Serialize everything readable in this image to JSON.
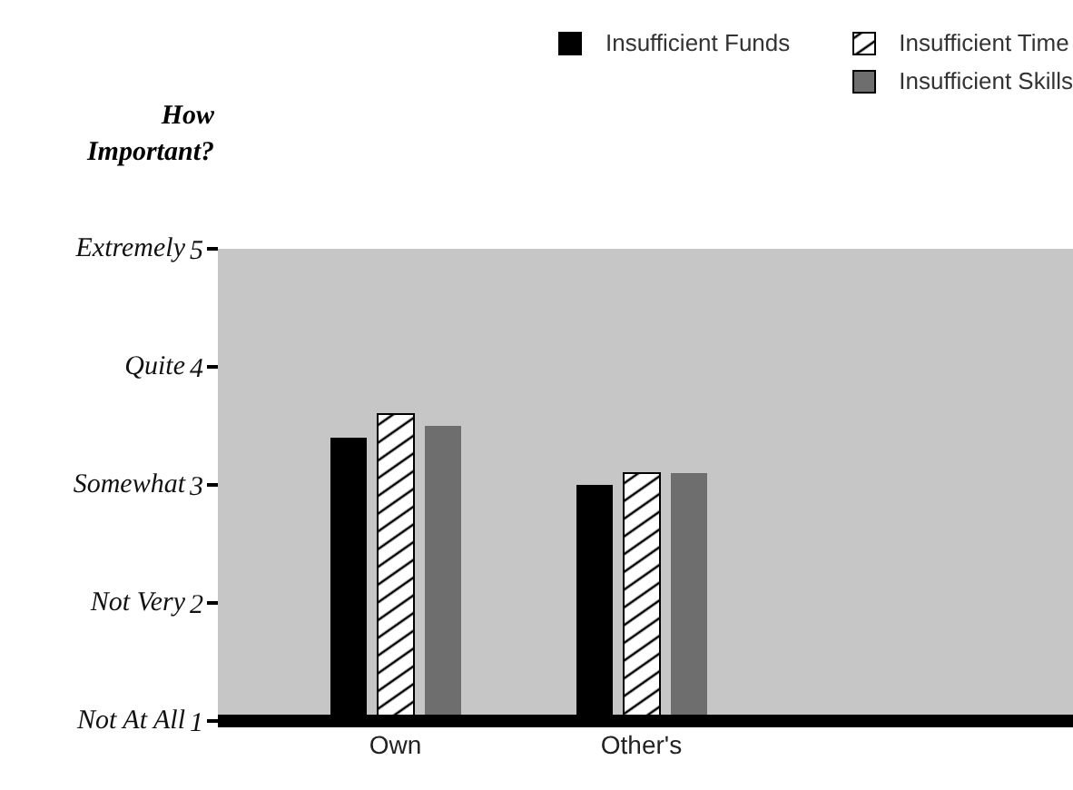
{
  "chart_data": {
    "type": "bar",
    "ylabel": "How Important?",
    "categories": [
      "Own",
      "Other's"
    ],
    "series": [
      {
        "name": "Insufficient Funds",
        "color": "#000000",
        "values": [
          3.4,
          3.0
        ]
      },
      {
        "name": "Insufficient Time",
        "color": "#ffffff",
        "values": [
          3.6,
          3.1
        ]
      },
      {
        "name": "Insufficient Skills",
        "color": "#6e6e6e",
        "values": [
          3.5,
          3.1
        ]
      }
    ],
    "ylim": [
      1,
      5
    ],
    "yticks": [
      1,
      2,
      3,
      4,
      5
    ],
    "annotations": [
      "Not At All",
      "Not Very",
      "Somewhat",
      "Quite",
      "Extremely"
    ],
    "legend": "top right"
  }
}
